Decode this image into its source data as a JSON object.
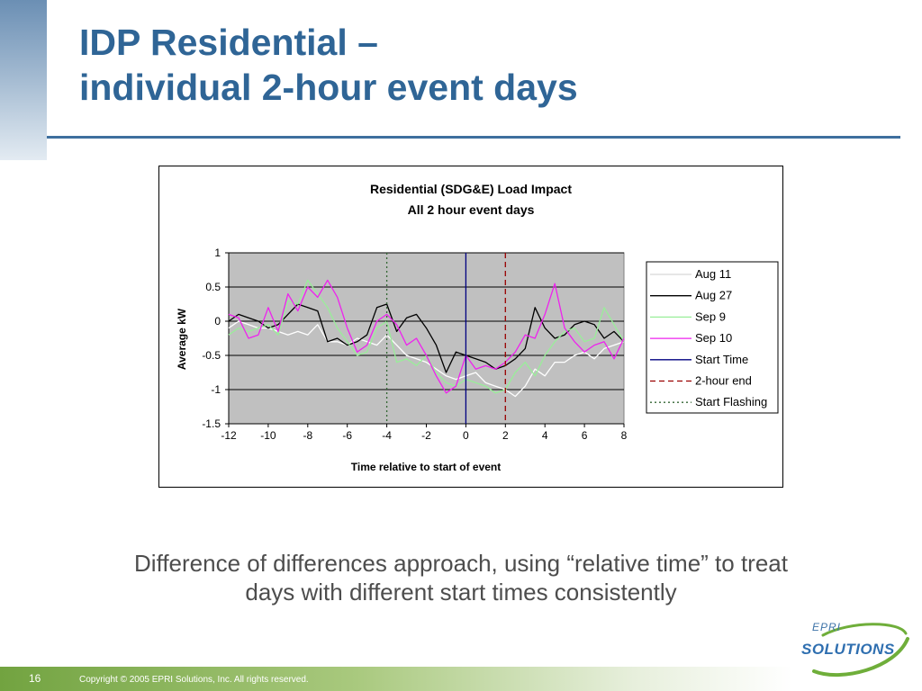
{
  "slide": {
    "title_line1": "IDP Residential –",
    "title_line2": "individual 2-hour event days",
    "caption_line1": "Difference of differences approach, using “relative time” to treat",
    "caption_line2": "days with different start times consistently",
    "page_number": "16",
    "copyright": "Copyright © 2005 EPRI Solutions, Inc. All rights reserved.",
    "logo_top": "EPRI",
    "logo_main": "SOLUTIONS",
    "colors": {
      "title": "#2f6596",
      "rule": "#3e6f9e",
      "footer_green": "#72a340",
      "caption": "#4d4d4d"
    }
  },
  "chart_data": {
    "type": "line",
    "title": "Residential (SDG&E) Load Impact",
    "subtitle": "All 2 hour event days",
    "xlabel": "Time relative to start of event",
    "ylabel": "Average kW",
    "xlim": [
      -12,
      8
    ],
    "ylim": [
      -1.5,
      1
    ],
    "x_ticks": [
      -12,
      -10,
      -8,
      -6,
      -4,
      -2,
      0,
      2,
      4,
      6,
      8
    ],
    "y_ticks": [
      1,
      0.5,
      0,
      -0.5,
      -1,
      -1.5
    ],
    "plot_background": "#c0c0c0",
    "grid": "horizontal",
    "legend_position": "right",
    "x": [
      -12,
      -11.5,
      -11,
      -10.5,
      -10,
      -9.5,
      -9,
      -8.5,
      -8,
      -7.5,
      -7,
      -6.5,
      -6,
      -5.5,
      -5,
      -4.5,
      -4,
      -3.5,
      -3,
      -2.5,
      -2,
      -1.5,
      -1,
      -0.5,
      0,
      0.5,
      1,
      1.5,
      2,
      2.5,
      3,
      3.5,
      4,
      4.5,
      5,
      5.5,
      6,
      6.5,
      7,
      7.5,
      8
    ],
    "series": [
      {
        "name": "Aug 11",
        "color": "#ffffff",
        "style": "solid",
        "values": [
          -0.1,
          0.0,
          -0.05,
          -0.1,
          -0.1,
          -0.15,
          -0.2,
          -0.15,
          -0.2,
          -0.05,
          -0.3,
          -0.3,
          -0.35,
          -0.25,
          -0.3,
          -0.35,
          -0.2,
          -0.35,
          -0.5,
          -0.55,
          -0.6,
          -0.7,
          -0.8,
          -0.85,
          -0.8,
          -0.75,
          -0.9,
          -0.95,
          -1.0,
          -1.1,
          -0.95,
          -0.7,
          -0.8,
          -0.6,
          -0.6,
          -0.5,
          -0.45,
          -0.55,
          -0.4,
          -0.35,
          -0.3
        ]
      },
      {
        "name": "Aug 27",
        "color": "#000000",
        "style": "solid",
        "values": [
          0.0,
          0.1,
          0.05,
          0.0,
          -0.1,
          -0.05,
          0.1,
          0.25,
          0.2,
          0.15,
          -0.3,
          -0.25,
          -0.35,
          -0.3,
          -0.2,
          0.2,
          0.25,
          -0.15,
          0.05,
          0.1,
          -0.1,
          -0.35,
          -0.75,
          -0.45,
          -0.5,
          -0.55,
          -0.6,
          -0.7,
          -0.65,
          -0.55,
          -0.4,
          0.2,
          -0.1,
          -0.25,
          -0.2,
          -0.05,
          0.0,
          -0.05,
          -0.25,
          -0.15,
          -0.3
        ]
      },
      {
        "name": "Sep 9",
        "color": "#99ee99",
        "style": "solid",
        "values": [
          -0.2,
          -0.1,
          -0.15,
          -0.1,
          -0.05,
          -0.2,
          0.3,
          0.25,
          0.6,
          0.4,
          0.2,
          -0.1,
          -0.3,
          -0.5,
          -0.45,
          -0.1,
          0.0,
          -0.6,
          -0.55,
          -0.65,
          -0.5,
          -0.75,
          -0.9,
          -0.95,
          -0.85,
          -0.9,
          -0.95,
          -1.05,
          -1.0,
          -0.75,
          -0.6,
          -0.8,
          -0.5,
          -0.3,
          -0.15,
          -0.1,
          -0.3,
          -0.25,
          0.2,
          -0.05,
          -0.3
        ]
      },
      {
        "name": "Sep 10",
        "color": "#ee22ee",
        "style": "solid",
        "values": [
          0.1,
          0.05,
          -0.25,
          -0.2,
          0.2,
          -0.15,
          0.4,
          0.15,
          0.5,
          0.35,
          0.6,
          0.35,
          -0.1,
          -0.45,
          -0.35,
          0.0,
          0.1,
          -0.05,
          -0.35,
          -0.25,
          -0.5,
          -0.8,
          -1.05,
          -0.95,
          -0.5,
          -0.7,
          -0.65,
          -0.7,
          -0.6,
          -0.45,
          -0.2,
          -0.25,
          0.1,
          0.55,
          -0.1,
          -0.3,
          -0.45,
          -0.35,
          -0.3,
          -0.55,
          -0.25
        ]
      }
    ],
    "reference_lines": [
      {
        "name": "Start Time",
        "x": 0,
        "color": "#000080",
        "style": "solid"
      },
      {
        "name": "2-hour end",
        "x": 2,
        "color": "#990000",
        "style": "dashed"
      },
      {
        "name": "Start Flashing",
        "x": -4,
        "color": "#336633",
        "style": "dotted"
      }
    ]
  }
}
